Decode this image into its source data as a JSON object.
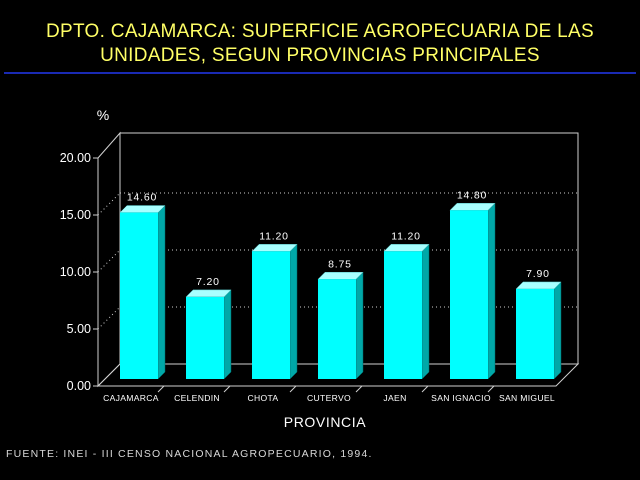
{
  "header": {
    "title_line1": "DPTO. CAJAMARCA: SUPERFICIE AGROPECUARIA DE LAS",
    "title_line2": "UNIDADES, SEGUN PROVINCIAS PRINCIPALES"
  },
  "footer": {
    "source": "FUENTE: INEI - III CENSO NACIONAL AGROPECUARIO, 1994."
  },
  "colors": {
    "background": "#000000",
    "title": "#ffff66",
    "rule": "#1a2ab4",
    "bar": "#00ffff",
    "bar_side": "#00a8a8",
    "bar_top": "#a8ffff",
    "axis": "#d0d0d0",
    "text": "#ffffff",
    "source": "#d8d8d8"
  },
  "chart_data": {
    "type": "bar",
    "title": "DPTO. CAJAMARCA: SUPERFICIE AGROPECUARIA DE LAS UNIDADES, SEGUN PROVINCIAS PRINCIPALES",
    "xlabel": "PROVINCIA",
    "ylabel": "%",
    "categories": [
      "CAJAMARCA",
      "CELENDIN",
      "CHOTA",
      "CUTERVO",
      "JAEN",
      "SAN IGNACIO",
      "SAN MIGUEL"
    ],
    "values": [
      14.6,
      7.2,
      11.2,
      8.75,
      11.2,
      14.8,
      7.9
    ],
    "value_labels": [
      "14.60",
      "7.20",
      "11.20",
      "8.75",
      "11.20",
      "14.80",
      "7.90"
    ],
    "yticks": [
      "0.00",
      "5.00",
      "10.00",
      "15.00",
      "20.00"
    ],
    "ylim": [
      0,
      20
    ],
    "grid": "dotted horizontal",
    "style": "3d"
  }
}
